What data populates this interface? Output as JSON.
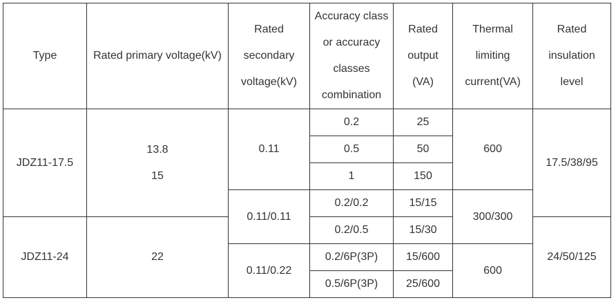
{
  "headers": {
    "type": "Type",
    "primary": "Rated primary voltage(kV)",
    "secondary": [
      "Rated",
      "secondary",
      "voltage(kV)"
    ],
    "accuracy": [
      "Accuracy class",
      "or accuracy",
      "classes",
      "combination"
    ],
    "output": [
      "Rated",
      "output",
      "(VA)"
    ],
    "thermal": [
      "Thermal",
      "limiting",
      "current(VA)"
    ],
    "insulation": [
      "Rated",
      "insulation",
      "level"
    ]
  },
  "rows": {
    "type_a": "JDZ11-17.5",
    "primary_a": [
      "13.8",
      "15"
    ],
    "type_b": "JDZ11-24",
    "primary_b": "22",
    "secondary": [
      "0.11",
      "0.11/0.11",
      "0.11/0.22"
    ],
    "accuracy": [
      "0.2",
      "0.5",
      "1",
      "0.2/0.2",
      "0.2/0.5",
      "0.2/6P(3P)",
      "0.5/6P(3P)"
    ],
    "output": [
      "25",
      "50",
      "150",
      "15/15",
      "15/30",
      "15/600",
      "25/600"
    ],
    "thermal": [
      "600",
      "300/300",
      "600"
    ],
    "insulation": [
      "17.5/38/95",
      "24/50/125"
    ]
  }
}
